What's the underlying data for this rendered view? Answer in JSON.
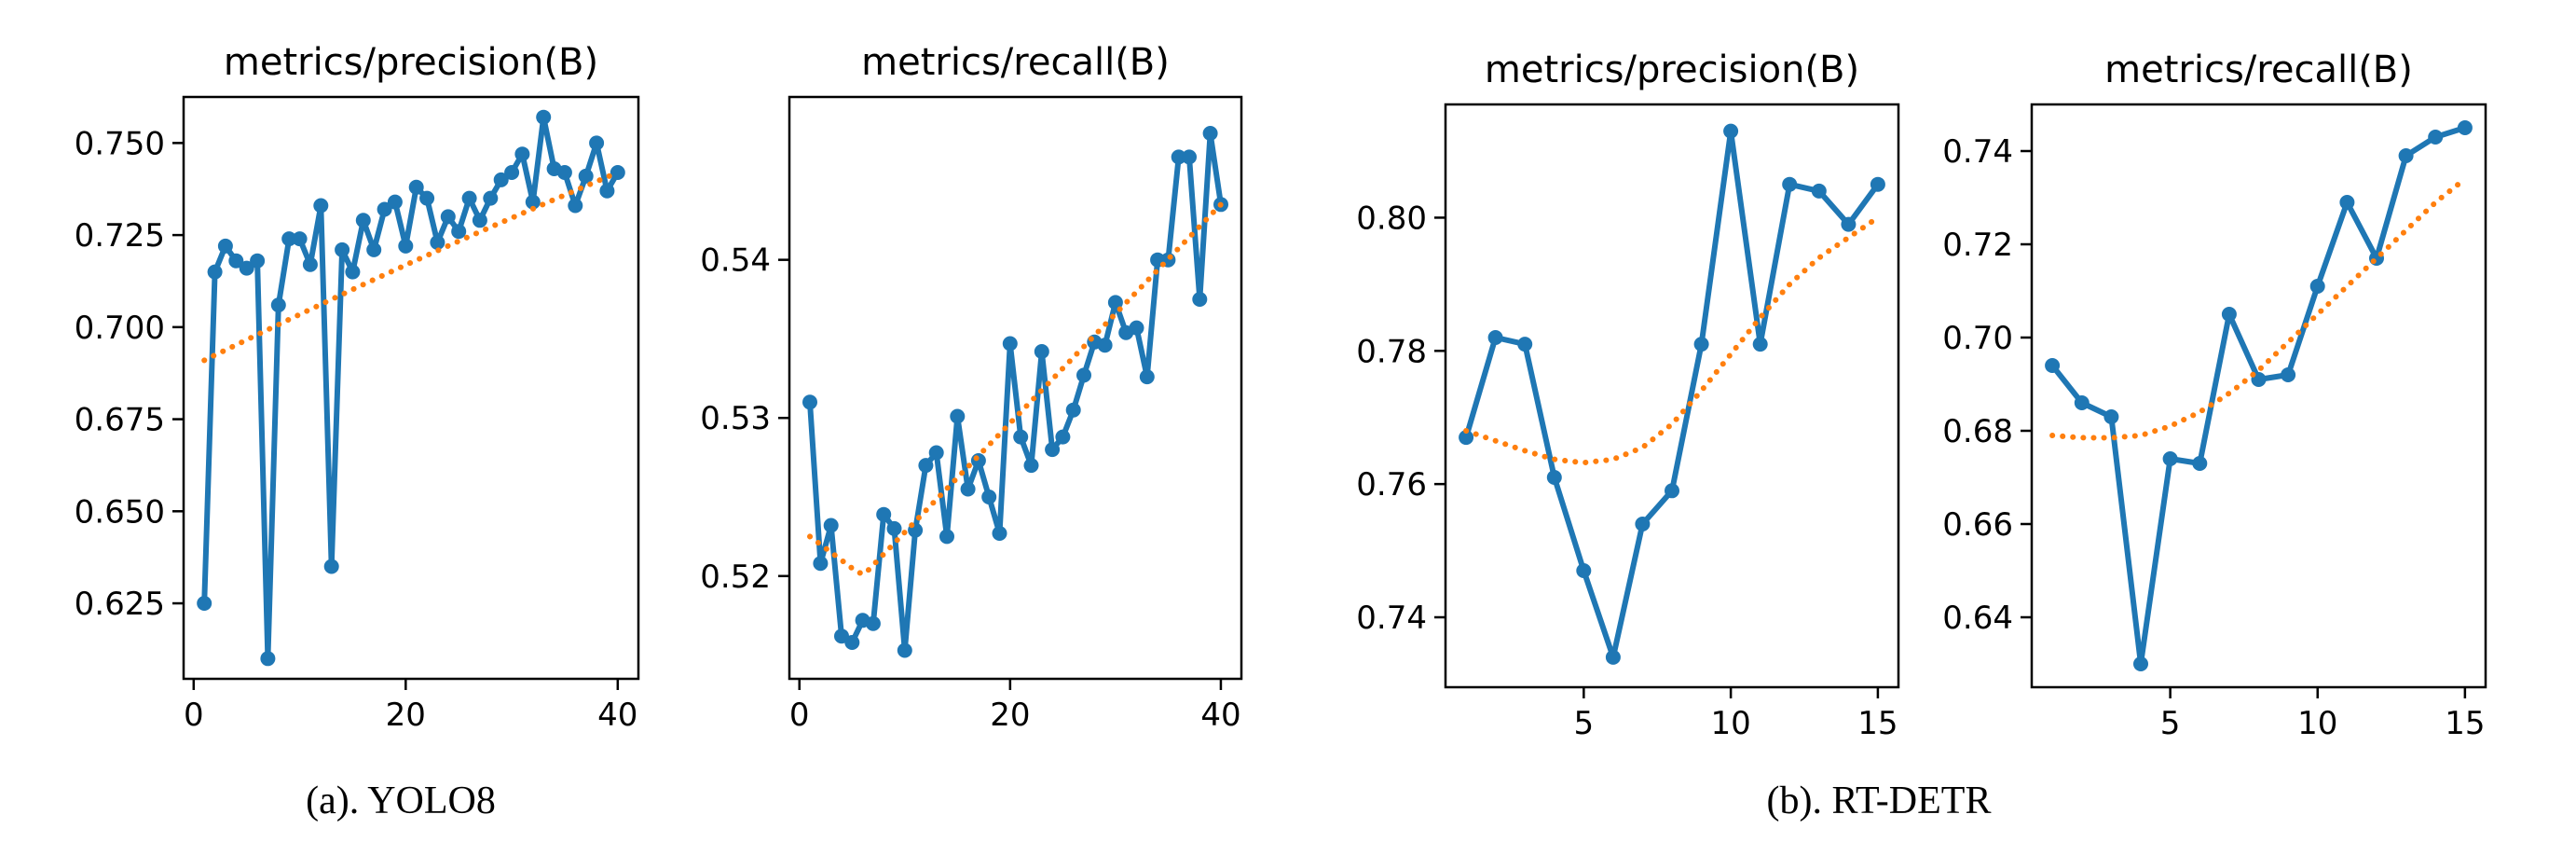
{
  "captions": {
    "left": "(a). YOLO8",
    "right": "(b). RT-DETR"
  },
  "colors": {
    "series": "#1f77b4",
    "trend": "#ff7f0e"
  },
  "chart_data": [
    {
      "type": "line",
      "group": "YOLO8",
      "title": "metrics/precision(B)",
      "xlabel": "",
      "ylabel": "",
      "xlim": [
        -0.95,
        41.95
      ],
      "ylim": [
        0.6045,
        0.7625
      ],
      "xticks": [
        0,
        20,
        40
      ],
      "xtick_labels": [
        "0",
        "20",
        "40"
      ],
      "yticks": [
        0.625,
        0.65,
        0.675,
        0.7,
        0.725,
        0.75
      ],
      "ytick_labels": [
        "0.625",
        "0.650",
        "0.675",
        "0.700",
        "0.725",
        "0.750"
      ],
      "grid": false,
      "series": [
        {
          "name": "results",
          "style": "solid-with-markers",
          "x": [
            1,
            2,
            3,
            4,
            5,
            6,
            7,
            8,
            9,
            10,
            11,
            12,
            13,
            14,
            15,
            16,
            17,
            18,
            19,
            20,
            21,
            22,
            23,
            24,
            25,
            26,
            27,
            28,
            29,
            30,
            31,
            32,
            33,
            34,
            35,
            36,
            37,
            38,
            39,
            40
          ],
          "values": [
            0.625,
            0.715,
            0.722,
            0.718,
            0.716,
            0.718,
            0.61,
            0.706,
            0.724,
            0.724,
            0.717,
            0.733,
            0.635,
            0.721,
            0.715,
            0.729,
            0.721,
            0.732,
            0.734,
            0.722,
            0.738,
            0.735,
            0.723,
            0.73,
            0.726,
            0.735,
            0.729,
            0.735,
            0.74,
            0.742,
            0.747,
            0.734,
            0.757,
            0.743,
            0.742,
            0.733,
            0.741,
            0.75,
            0.737,
            0.742
          ]
        },
        {
          "name": "smooth",
          "style": "dotted",
          "x": [
            1,
            40
          ],
          "values": [
            0.691,
            0.742
          ],
          "curvature": 0.02
        }
      ]
    },
    {
      "type": "line",
      "group": "YOLO8",
      "title": "metrics/recall(B)",
      "xlabel": "",
      "ylabel": "",
      "xlim": [
        -0.95,
        41.95
      ],
      "ylim": [
        0.5135,
        0.5503
      ],
      "xticks": [
        0,
        20,
        40
      ],
      "xtick_labels": [
        "0",
        "20",
        "40"
      ],
      "yticks": [
        0.52,
        0.53,
        0.54
      ],
      "ytick_labels": [
        "0.52",
        "0.53",
        "0.54"
      ],
      "grid": false,
      "series": [
        {
          "name": "results",
          "style": "solid-with-markers",
          "x": [
            1,
            2,
            3,
            4,
            5,
            6,
            7,
            8,
            9,
            10,
            11,
            12,
            13,
            14,
            15,
            16,
            17,
            18,
            19,
            20,
            21,
            22,
            23,
            24,
            25,
            26,
            27,
            28,
            29,
            30,
            31,
            32,
            33,
            34,
            35,
            36,
            37,
            38,
            39,
            40
          ],
          "values": [
            0.531,
            0.5208,
            0.5232,
            0.5162,
            0.5158,
            0.5172,
            0.517,
            0.5239,
            0.523,
            0.5153,
            0.5229,
            0.527,
            0.5278,
            0.5225,
            0.5301,
            0.5255,
            0.5273,
            0.525,
            0.5227,
            0.5347,
            0.5288,
            0.527,
            0.5342,
            0.528,
            0.5288,
            0.5305,
            0.5327,
            0.5348,
            0.5346,
            0.5373,
            0.5354,
            0.5357,
            0.5326,
            0.54,
            0.54,
            0.5465,
            0.5465,
            0.5375,
            0.548,
            0.5435
          ]
        },
        {
          "name": "smooth",
          "style": "dotted",
          "x": [
            1,
            6,
            40
          ],
          "values": [
            0.5225,
            0.52,
            0.5435
          ],
          "curvature": 0
        }
      ]
    },
    {
      "type": "line",
      "group": "RT-DETR",
      "title": "metrics/precision(B)",
      "xlabel": "",
      "ylabel": "",
      "xlim": [
        0.3,
        15.7
      ],
      "ylim": [
        0.7295,
        0.817
      ],
      "xticks": [
        5,
        10,
        15
      ],
      "xtick_labels": [
        "5",
        "10",
        "15"
      ],
      "yticks": [
        0.74,
        0.76,
        0.78,
        0.8
      ],
      "ytick_labels": [
        "0.74",
        "0.76",
        "0.78",
        "0.80"
      ],
      "grid": false,
      "series": [
        {
          "name": "results",
          "style": "solid-with-markers",
          "x": [
            1,
            2,
            3,
            4,
            5,
            6,
            7,
            8,
            9,
            10,
            11,
            12,
            13,
            14,
            15
          ],
          "values": [
            0.767,
            0.782,
            0.781,
            0.761,
            0.747,
            0.734,
            0.754,
            0.759,
            0.781,
            0.813,
            0.781,
            0.805,
            0.804,
            0.799,
            0.805
          ]
        },
        {
          "name": "smooth",
          "style": "dotted",
          "x": [
            1,
            2,
            3,
            4,
            5,
            6,
            7,
            8,
            9,
            10,
            11,
            12,
            13,
            14,
            15
          ],
          "values": [
            0.768,
            0.7665,
            0.765,
            0.7637,
            0.7632,
            0.7637,
            0.7655,
            0.769,
            0.774,
            0.7795,
            0.785,
            0.79,
            0.794,
            0.797,
            0.8
          ]
        }
      ]
    },
    {
      "type": "line",
      "group": "RT-DETR",
      "title": "metrics/recall(B)",
      "xlabel": "",
      "ylabel": "",
      "xlim": [
        0.3,
        15.7
      ],
      "ylim": [
        0.625,
        0.75
      ],
      "xticks": [
        5,
        10,
        15
      ],
      "xtick_labels": [
        "5",
        "10",
        "15"
      ],
      "yticks": [
        0.64,
        0.66,
        0.68,
        0.7,
        0.72,
        0.74
      ],
      "ytick_labels": [
        "0.64",
        "0.66",
        "0.68",
        "0.70",
        "0.72",
        "0.74"
      ],
      "grid": false,
      "series": [
        {
          "name": "results",
          "style": "solid-with-markers",
          "x": [
            1,
            2,
            3,
            4,
            5,
            6,
            7,
            8,
            9,
            10,
            11,
            12,
            13,
            14,
            15
          ],
          "values": [
            0.694,
            0.686,
            0.683,
            0.63,
            0.674,
            0.673,
            0.705,
            0.691,
            0.692,
            0.711,
            0.729,
            0.717,
            0.739,
            0.743,
            0.745
          ]
        },
        {
          "name": "smooth",
          "style": "dotted",
          "x": [
            1,
            2,
            3,
            4,
            5,
            6,
            7,
            8,
            9,
            10,
            11,
            12,
            13,
            14,
            15
          ],
          "values": [
            0.679,
            0.6785,
            0.6785,
            0.679,
            0.681,
            0.684,
            0.688,
            0.693,
            0.699,
            0.705,
            0.711,
            0.717,
            0.723,
            0.729,
            0.734
          ]
        }
      ]
    }
  ]
}
